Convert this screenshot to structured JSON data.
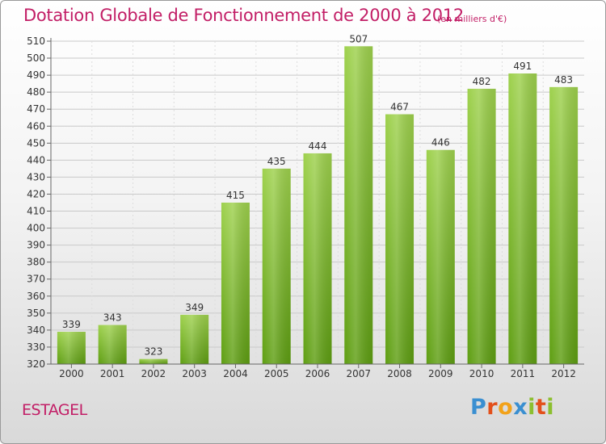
{
  "title": "Dotation Globale de Fonctionnement de 2000 à 2012",
  "unit_note": "(en milliers d'€)",
  "commune": "ESTAGEL",
  "logo": {
    "text": "Proxiti",
    "letter_colors": [
      "#3a8fd1",
      "#e3501b",
      "#f2a21a",
      "#3a8fd1",
      "#8cbf2f",
      "#e3501b",
      "#8cbf2f"
    ]
  },
  "colors": {
    "title": "#c21e66",
    "bar_light": "#9ed14d",
    "bar_dark": "#5e9e12",
    "grid": "#c9c9c9",
    "axis": "#666666"
  },
  "chart_data": {
    "type": "bar",
    "categories": [
      "2000",
      "2001",
      "2002",
      "2003",
      "2004",
      "2005",
      "2006",
      "2007",
      "2008",
      "2009",
      "2010",
      "2011",
      "2012"
    ],
    "values": [
      339,
      343,
      323,
      349,
      415,
      435,
      444,
      507,
      467,
      446,
      482,
      491,
      483
    ],
    "ylim": [
      320,
      510
    ],
    "ytick_step": 10,
    "grid": true,
    "data_labels": true
  }
}
